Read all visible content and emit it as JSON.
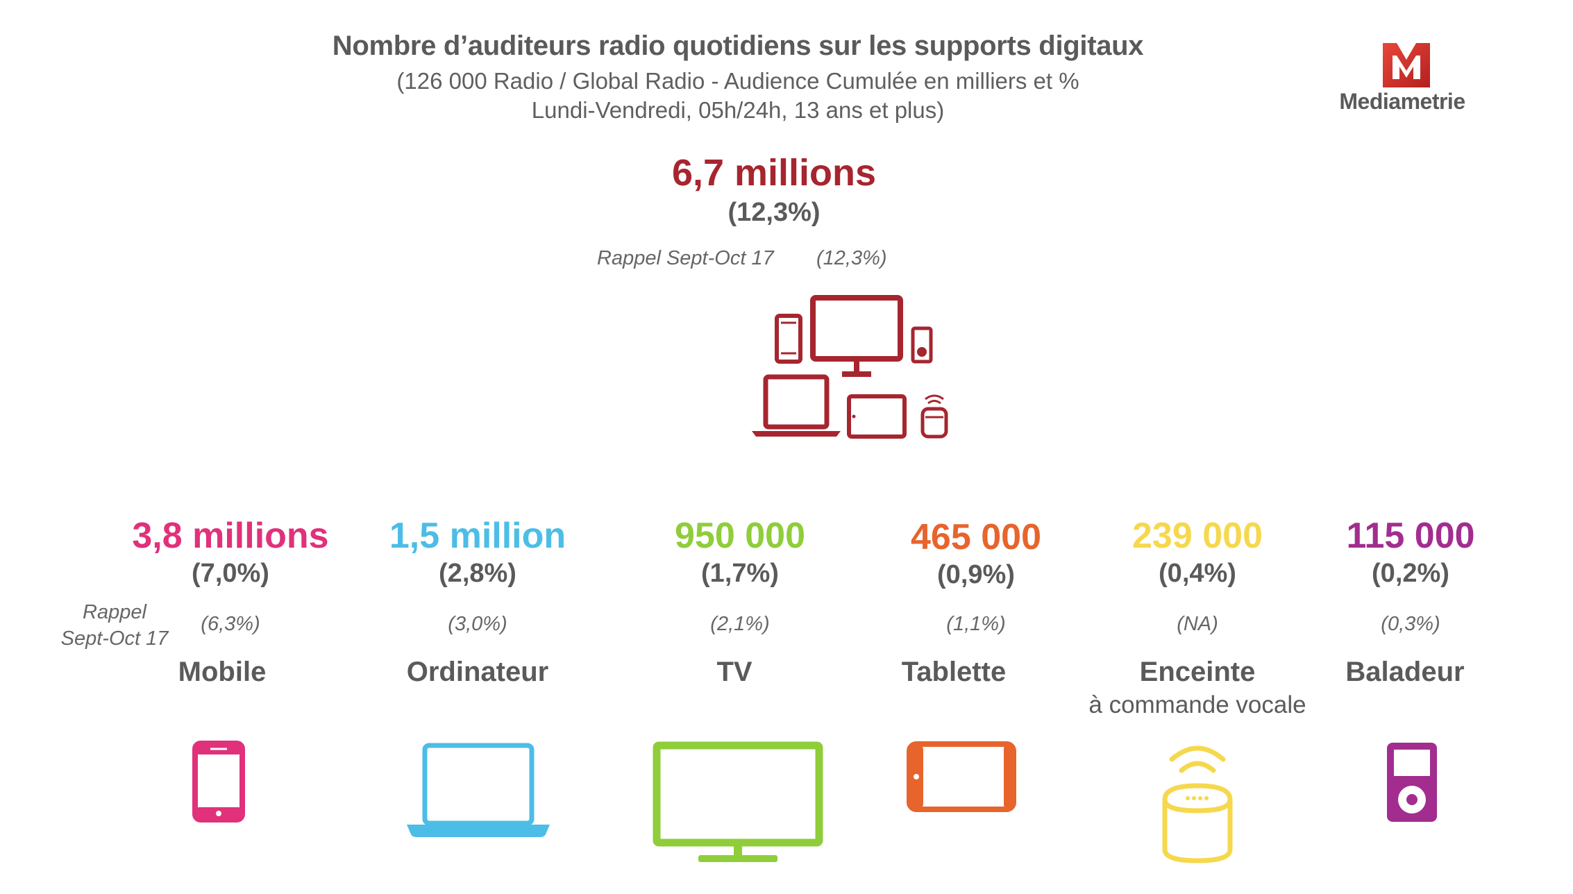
{
  "header": {
    "title": "Nombre d’auditeurs radio quotidiens sur les supports digitaux",
    "subtitle_line1": "(126 000 Radio / Global Radio - Audience Cumulée en milliers et %",
    "subtitle_line2": "Lundi-Vendredi, 05h/24h, 13 ans et plus)"
  },
  "logo": {
    "name": "Mediametrie",
    "letter": "M",
    "color": "#d9312b"
  },
  "total": {
    "value": "6,7 millions",
    "pct": "(12,3%)",
    "recall_label": "Rappel Sept-Oct 17",
    "recall_pct": "(12,3%)",
    "color": "#a6252f",
    "icon": "all-devices-icon"
  },
  "recall_label_line1": "Rappel",
  "recall_label_line2": "Sept-Oct 17",
  "devices": [
    {
      "value": "3,8 millions",
      "pct": "(7,0%)",
      "recall": "(6,3%)",
      "label": "Mobile",
      "sub": "",
      "color": "#e0317a",
      "icon": "mobile-icon"
    },
    {
      "value": "1,5 million",
      "pct": "(2,8%)",
      "recall": "(3,0%)",
      "label": "Ordinateur",
      "sub": "",
      "color": "#4cbde6",
      "icon": "laptop-icon"
    },
    {
      "value": "950 000",
      "pct": "(1,7%)",
      "recall": "(2,1%)",
      "label": "TV",
      "sub": "",
      "color": "#8fcd3a",
      "icon": "tv-icon"
    },
    {
      "value": "465 000",
      "pct": "(0,9%)",
      "recall": "(1,1%)",
      "label": "Tablette",
      "sub": "",
      "color": "#e7642c",
      "icon": "tablet-icon"
    },
    {
      "value": "239 000",
      "pct": "(0,4%)",
      "recall": "(NA)",
      "label": "Enceinte",
      "sub": "à commande vocale",
      "color": "#f6d84e",
      "icon": "smart-speaker-icon"
    },
    {
      "value": "115 000",
      "pct": "(0,2%)",
      "recall": "(0,3%)",
      "label": "Baladeur",
      "sub": "",
      "color": "#a22d8f",
      "icon": "music-player-icon"
    }
  ]
}
